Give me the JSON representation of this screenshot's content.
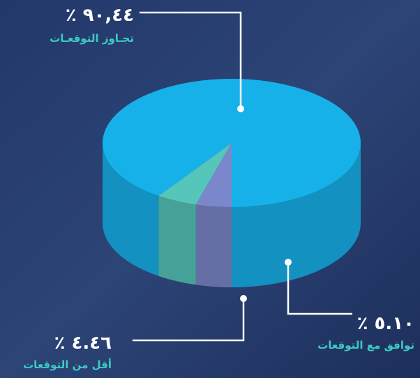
{
  "chart_data": {
    "type": "pie",
    "categories": [
      "تجـاوز التوقعـات",
      "توافق مع التوقعات",
      "أقل من التوقعات"
    ],
    "values": [
      90.44,
      5.1,
      4.46
    ],
    "value_labels": [
      "٪ ٩٠,٤٤",
      "٪ ٥.١٠",
      "٪ ٤.٤٦"
    ],
    "colors": [
      "#17b1ea",
      "#55c6b9",
      "#7b87cb"
    ]
  }
}
